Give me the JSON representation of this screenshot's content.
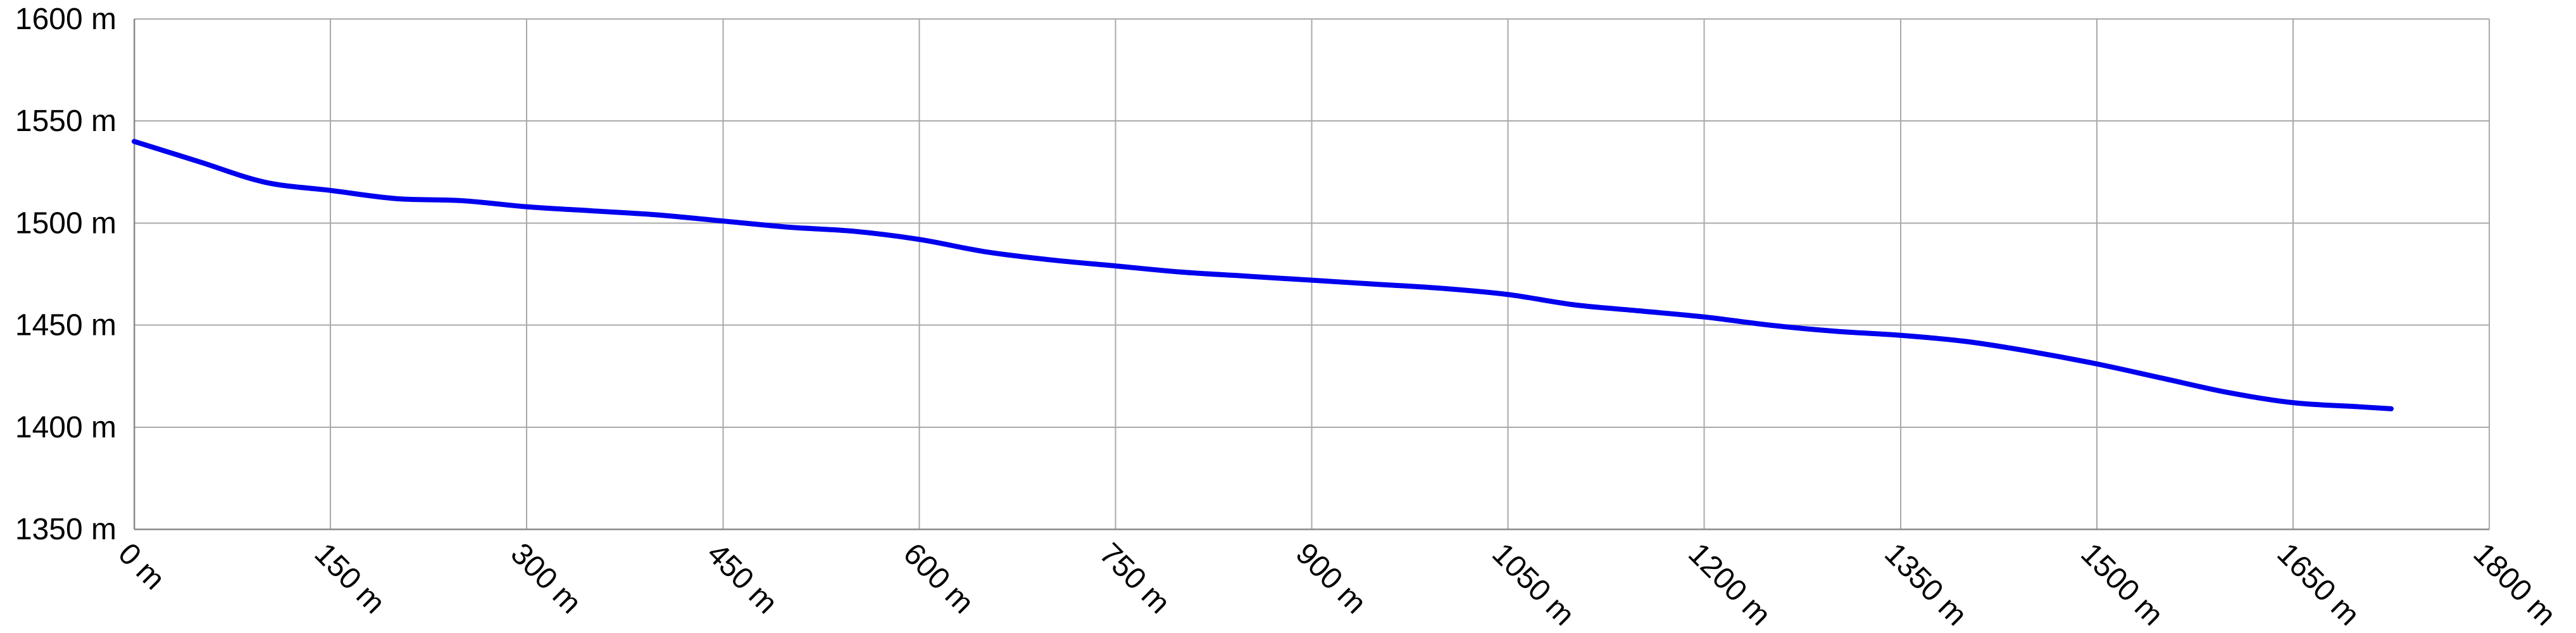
{
  "chart_data": {
    "type": "line",
    "title": "",
    "xlabel": "",
    "ylabel": "",
    "x_unit": "m",
    "y_unit": "m",
    "xlim": [
      0,
      1800
    ],
    "ylim": [
      1350,
      1600
    ],
    "x_ticks": [
      0,
      150,
      300,
      450,
      600,
      750,
      900,
      1050,
      1200,
      1350,
      1500,
      1650,
      1800
    ],
    "y_ticks": [
      1350,
      1400,
      1450,
      1500,
      1550,
      1600
    ],
    "x_tick_labels": [
      "0 m",
      "150 m",
      "300 m",
      "450 m",
      "600 m",
      "750 m",
      "900 m",
      "1050 m",
      "1200 m",
      "1350 m",
      "1500 m",
      "1650 m",
      "1800 m"
    ],
    "y_tick_labels": [
      "1350 m",
      "1400 m",
      "1450 m",
      "1500 m",
      "1550 m",
      "1600 m"
    ],
    "grid": true,
    "legend": "none",
    "color": "#0000ee",
    "series": [
      {
        "x": [
          0,
          50,
          100,
          150,
          200,
          250,
          300,
          350,
          400,
          450,
          500,
          550,
          600,
          650,
          700,
          750,
          800,
          850,
          900,
          950,
          1000,
          1050,
          1100,
          1150,
          1200,
          1250,
          1300,
          1350,
          1400,
          1450,
          1500,
          1550,
          1600,
          1650,
          1700,
          1725
        ],
        "y": [
          1540,
          1530,
          1520,
          1516,
          1512,
          1511,
          1508,
          1506,
          1504,
          1501,
          1498,
          1496,
          1492,
          1486,
          1482,
          1479,
          1476,
          1474,
          1472,
          1470,
          1468,
          1465,
          1460,
          1457,
          1454,
          1450,
          1447,
          1445,
          1442,
          1437,
          1431,
          1424,
          1417,
          1412,
          1410,
          1409
        ]
      }
    ]
  }
}
